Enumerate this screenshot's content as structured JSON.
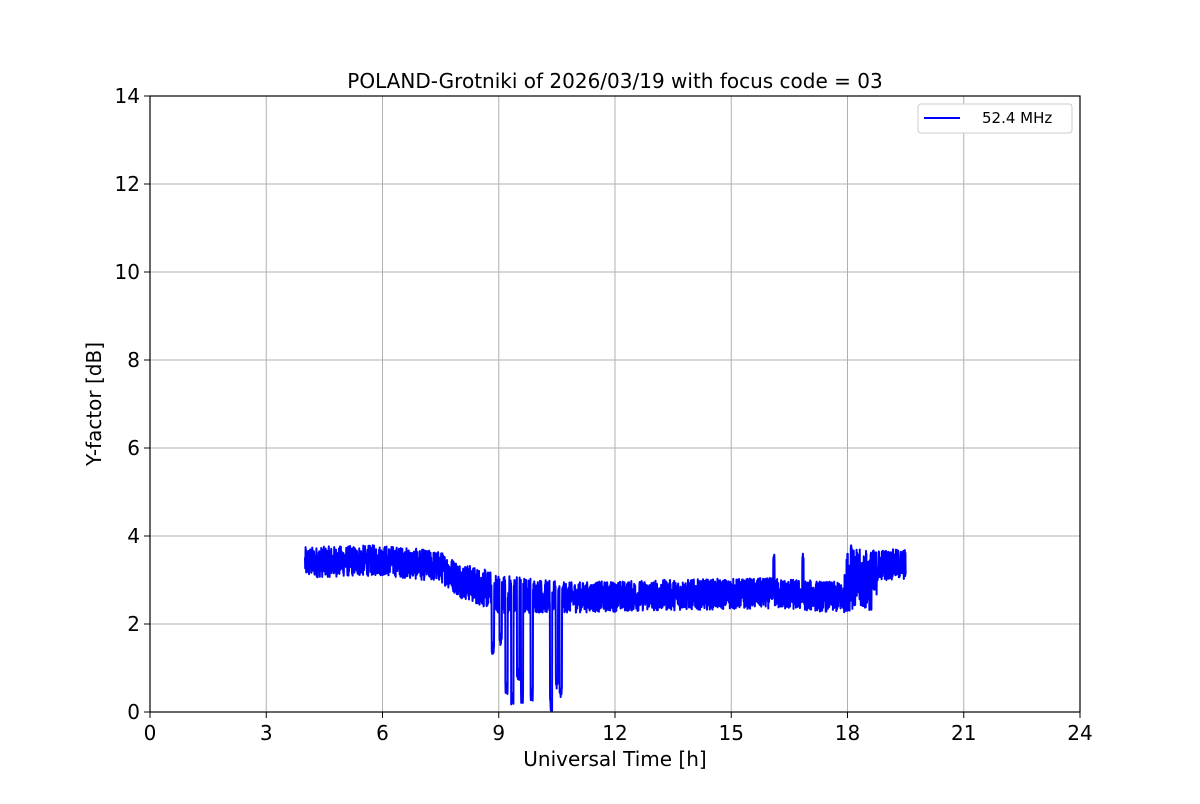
{
  "chart_data": {
    "type": "line",
    "title": "POLAND-Grotniki of 2026/03/19 with focus code = 03",
    "xlabel": "Universal Time [h]",
    "ylabel": "Y-factor [dB]",
    "xlim": [
      0,
      24
    ],
    "ylim": [
      0,
      14
    ],
    "xticks": [
      0,
      3,
      6,
      9,
      12,
      15,
      18,
      21,
      24
    ],
    "yticks": [
      0,
      2,
      4,
      6,
      8,
      10,
      12,
      14
    ],
    "grid": true,
    "legend_position": "top-right",
    "series": [
      {
        "name": "52.4 MHz",
        "color": "#0000ff",
        "time_range_h": [
          4.0,
          19.5
        ],
        "envelope": [
          {
            "t": 4.0,
            "mean": 3.4,
            "spread": 0.35
          },
          {
            "t": 6.0,
            "mean": 3.45,
            "spread": 0.35
          },
          {
            "t": 7.5,
            "mean": 3.3,
            "spread": 0.35
          },
          {
            "t": 8.0,
            "mean": 3.0,
            "spread": 0.4
          },
          {
            "t": 9.0,
            "mean": 2.7,
            "spread": 0.45
          },
          {
            "t": 10.7,
            "mean": 2.6,
            "spread": 0.35
          },
          {
            "t": 13.0,
            "mean": 2.65,
            "spread": 0.35
          },
          {
            "t": 16.0,
            "mean": 2.7,
            "spread": 0.35
          },
          {
            "t": 17.9,
            "mean": 2.6,
            "spread": 0.35
          },
          {
            "t": 18.0,
            "mean": 3.0,
            "spread": 0.7
          },
          {
            "t": 18.7,
            "mean": 3.0,
            "spread": 0.7
          },
          {
            "t": 18.8,
            "mean": 3.35,
            "spread": 0.35
          },
          {
            "t": 19.5,
            "mean": 3.35,
            "spread": 0.35
          }
        ],
        "dips": [
          {
            "t": 8.85,
            "min": 1.3
          },
          {
            "t": 9.05,
            "min": 1.5
          },
          {
            "t": 9.2,
            "min": 0.4
          },
          {
            "t": 9.35,
            "min": 0.15
          },
          {
            "t": 9.5,
            "min": 0.7
          },
          {
            "t": 9.6,
            "min": 0.2
          },
          {
            "t": 9.85,
            "min": 0.25
          },
          {
            "t": 10.35,
            "min": 0.0
          },
          {
            "t": 10.5,
            "min": 0.5
          },
          {
            "t": 10.6,
            "min": 0.3
          }
        ],
        "spikes": [
          {
            "t": 16.1,
            "max": 3.6
          },
          {
            "t": 16.85,
            "max": 3.6
          },
          {
            "t": 18.1,
            "max": 3.8
          }
        ]
      }
    ]
  }
}
